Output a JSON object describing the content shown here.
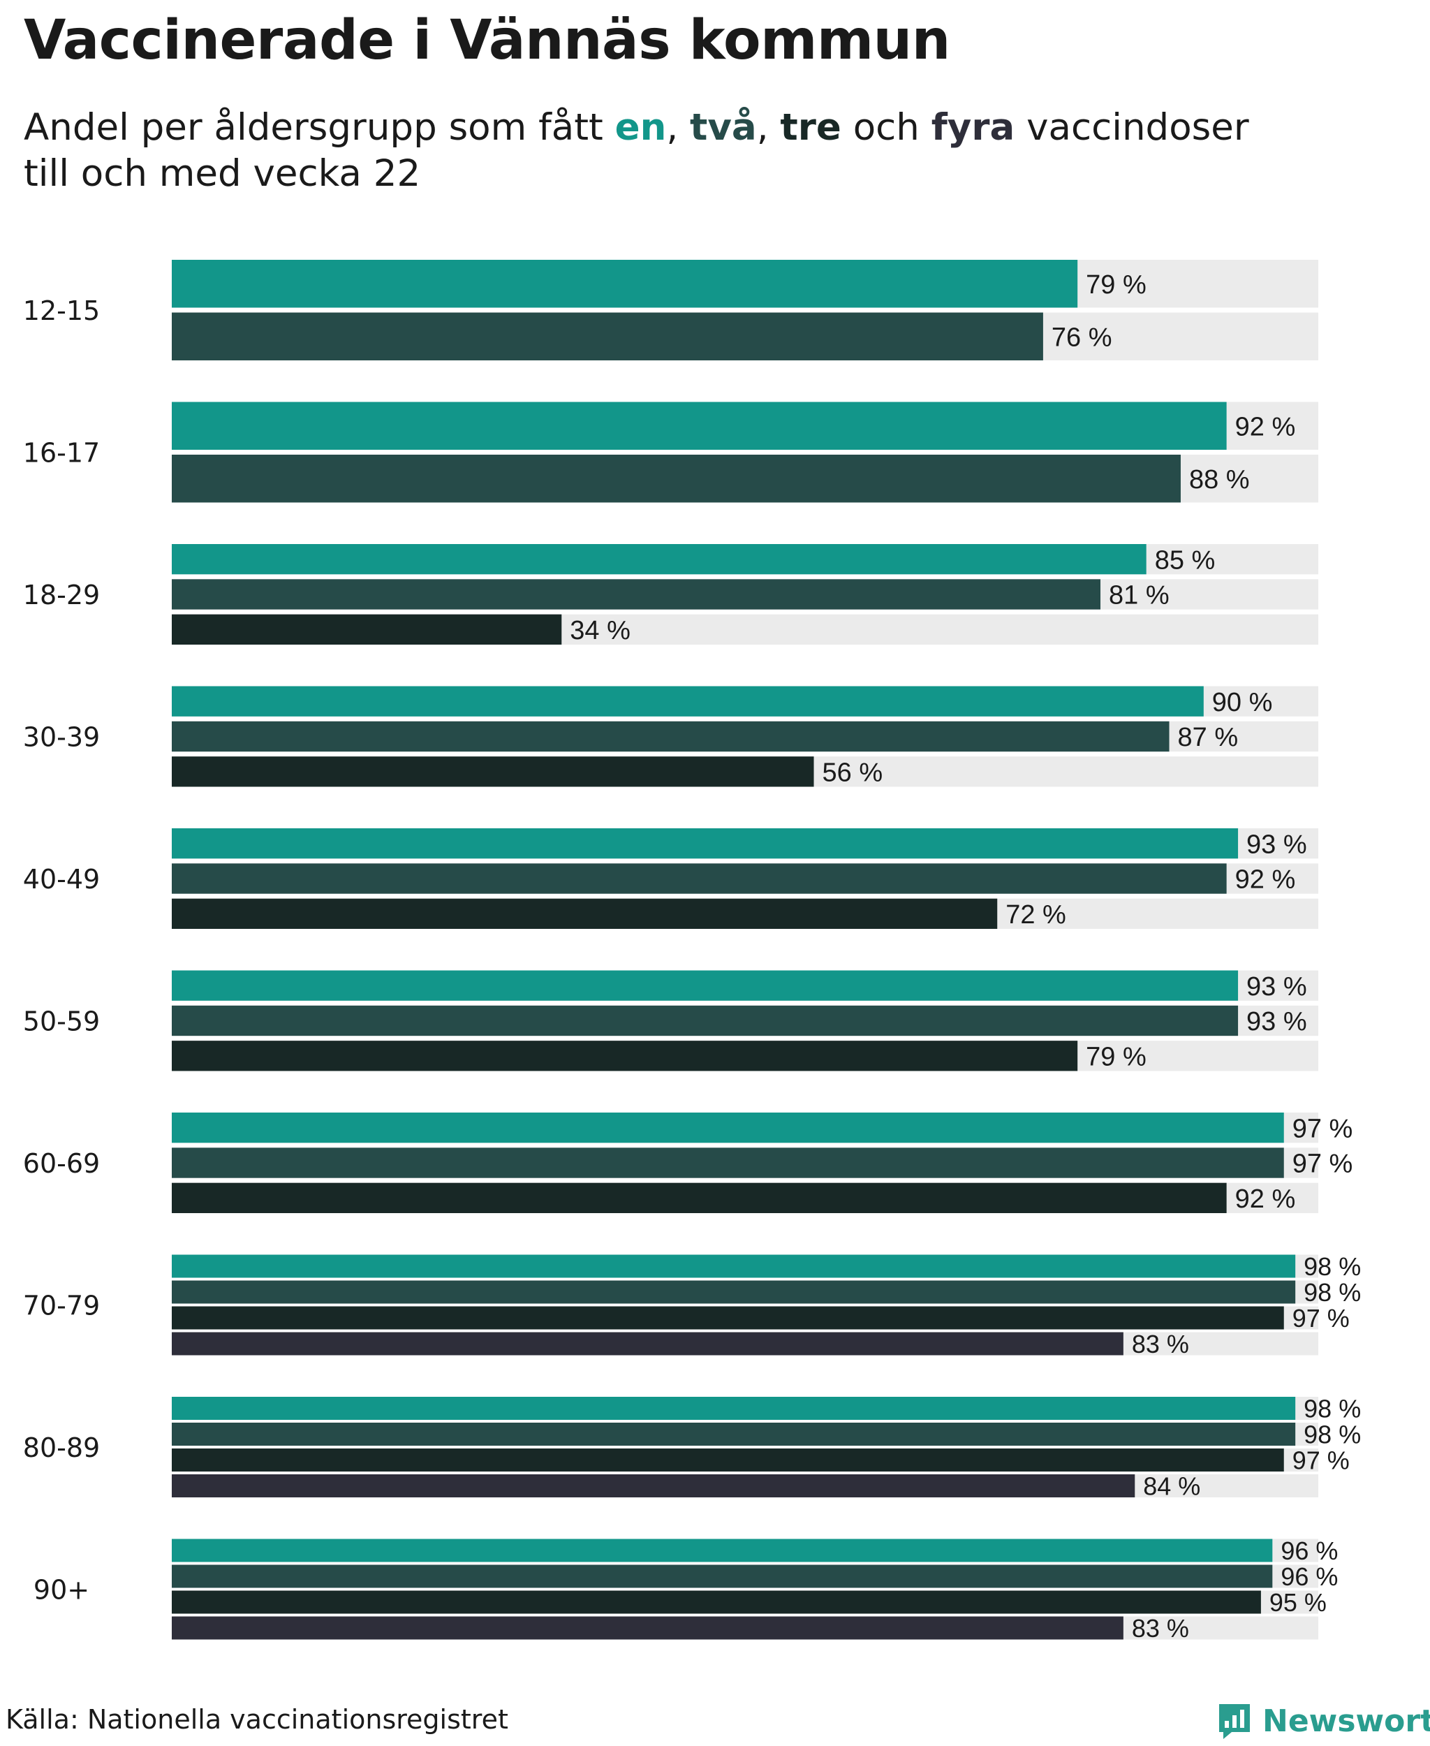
{
  "title": "Vaccinerade i Vännäs kommun",
  "subtitle": {
    "prefix": "Andel per åldersgrupp som fått",
    "w1": "en",
    "sep1": ",",
    "w2": "två",
    "sep2": ",",
    "w3": "tre",
    "mid": "och",
    "w4": "fyra",
    "suffix": "vaccindoser",
    "line2": "till och med vecka 22"
  },
  "colors": {
    "one": "#12968a",
    "two": "#264b49",
    "three": "#182826",
    "four": "#2e2e3a",
    "track": "#ebebeb",
    "brand": "#2a9d8f"
  },
  "source": "Källa: Nationella vaccinationsregistret",
  "brand": {
    "name": "Newsworthy",
    "icon": "newsworthy-logo-icon"
  },
  "chart_data": {
    "type": "bar",
    "orientation": "horizontal",
    "unit": "%",
    "xlim": [
      0,
      100
    ],
    "categories": [
      "12-15",
      "16-17",
      "18-29",
      "30-39",
      "40-49",
      "50-59",
      "60-69",
      "70-79",
      "80-89",
      "90+"
    ],
    "series": [
      {
        "name": "en",
        "values": [
          79,
          92,
          85,
          90,
          93,
          93,
          97,
          98,
          98,
          96
        ]
      },
      {
        "name": "två",
        "values": [
          76,
          88,
          81,
          87,
          92,
          93,
          97,
          98,
          98,
          96
        ]
      },
      {
        "name": "tre",
        "values": [
          null,
          null,
          34,
          56,
          72,
          79,
          92,
          97,
          97,
          95
        ]
      },
      {
        "name": "fyra",
        "values": [
          null,
          null,
          null,
          null,
          null,
          null,
          null,
          83,
          84,
          83
        ]
      }
    ]
  }
}
